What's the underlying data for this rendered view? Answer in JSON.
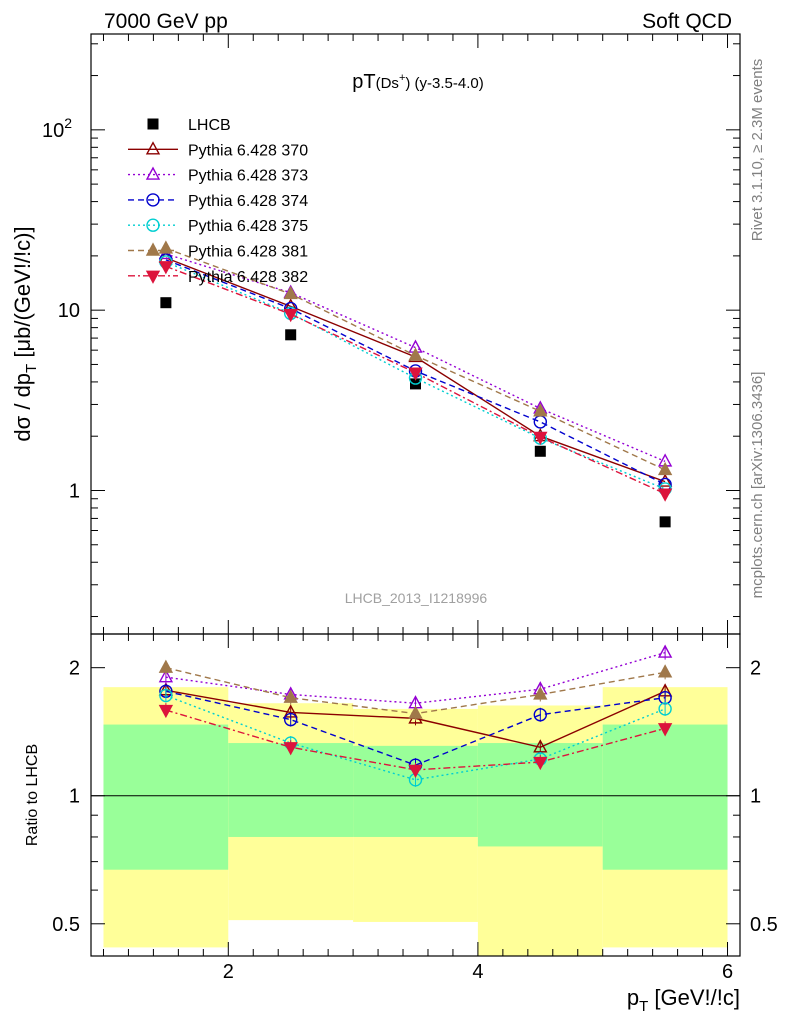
{
  "header": {
    "left": "7000 GeV pp",
    "right": "Soft QCD"
  },
  "side_labels": {
    "top": "Rivet 3.1.10, ≥ 2.3M events",
    "bottom": "mcplots.cern.ch [arXiv:1306.3436]"
  },
  "watermark": "LHCB_2013_I1218996",
  "chart_data": [
    {
      "type": "scatter",
      "panel": "main",
      "title_main": "pT",
      "title_sub": "(Ds",
      "title_sup": "+",
      "title_tail": ") (y-3.5-4.0)",
      "ylabel": "dσ / dp_T [μb/(GeV!/!c)]",
      "ylabel_main": "dσ / dp",
      "ylabel_sub": "T",
      "ylabel_tail": " [μb/(GeV!/!c)]",
      "yscale": "log",
      "xlim": [
        0.9,
        6.1
      ],
      "ylim": [
        0.16,
        340
      ],
      "yticks": [
        {
          "value": 1,
          "label": "1"
        },
        {
          "value": 10,
          "label": "10"
        },
        {
          "value": 100,
          "label": "10",
          "sup": "2"
        }
      ],
      "x": [
        1.5,
        2.5,
        3.5,
        4.5,
        5.5
      ],
      "series": [
        {
          "name": "LHCB",
          "color": "#000000",
          "marker": "square",
          "filled": true,
          "dash": "none",
          "values": [
            11.0,
            7.3,
            3.9,
            1.65,
            0.67
          ]
        },
        {
          "name": "Pythia 6.428 370",
          "color": "#8b0000",
          "marker": "triangle-up",
          "filled": false,
          "dash": "solid",
          "values": [
            19.5,
            10.5,
            5.5,
            2.0,
            1.12
          ]
        },
        {
          "name": "Pythia 6.428 373",
          "color": "#9400d3",
          "marker": "triangle-up",
          "filled": false,
          "dash": "dot",
          "values": [
            20.5,
            12.5,
            6.2,
            2.85,
            1.45
          ]
        },
        {
          "name": "Pythia 6.428 374",
          "color": "#0000cd",
          "marker": "circle",
          "filled": false,
          "dash": "dash",
          "values": [
            19.0,
            10.2,
            4.6,
            2.4,
            1.08
          ]
        },
        {
          "name": "Pythia 6.428 375",
          "color": "#00ced1",
          "marker": "circle",
          "filled": false,
          "dash": "dot",
          "values": [
            18.5,
            9.6,
            4.2,
            1.95,
            1.02
          ]
        },
        {
          "name": "Pythia 6.428 381",
          "color": "#a0784a",
          "marker": "triangle-up",
          "filled": true,
          "dash": "dash",
          "values": [
            22.0,
            12.3,
            5.6,
            2.75,
            1.3
          ]
        },
        {
          "name": "Pythia 6.428 382",
          "color": "#dc143c",
          "marker": "triangle-down",
          "filled": true,
          "dash": "dashdot",
          "values": [
            17.5,
            9.5,
            4.5,
            1.98,
            0.96
          ]
        }
      ]
    },
    {
      "type": "line",
      "panel": "ratio",
      "ylabel": "Ratio to LHCB",
      "xlabel": "p_T [GeV!/!c]",
      "xlabel_main": "p",
      "xlabel_sub": "T",
      "xlabel_tail": " [GeV!/!c]",
      "yscale": "log",
      "xlim": [
        0.9,
        6.1
      ],
      "ylim": [
        0.42,
        2.4
      ],
      "xticks": [
        {
          "value": 2,
          "label": "2"
        },
        {
          "value": 4,
          "label": "4"
        },
        {
          "value": 6,
          "label": "6"
        }
      ],
      "yticks": [
        {
          "value": 0.5,
          "label": "0.5"
        },
        {
          "value": 1,
          "label": "1"
        },
        {
          "value": 2,
          "label": "2"
        }
      ],
      "bands": [
        {
          "x0": 1,
          "x1": 2,
          "green": [
            0.67,
            1.47
          ],
          "yellow": [
            0.44,
            1.8
          ]
        },
        {
          "x0": 2,
          "x1": 3,
          "green": [
            0.8,
            1.33
          ],
          "yellow": [
            0.51,
            1.65
          ]
        },
        {
          "x0": 3,
          "x1": 4,
          "green": [
            0.8,
            1.31
          ],
          "yellow": [
            0.505,
            1.6
          ]
        },
        {
          "x0": 4,
          "x1": 5,
          "green": [
            0.76,
            1.33
          ],
          "yellow": [
            0.4,
            1.63
          ]
        },
        {
          "x0": 5,
          "x1": 6,
          "green": [
            0.67,
            1.47
          ],
          "yellow": [
            0.44,
            1.8
          ]
        }
      ],
      "x": [
        1.5,
        2.5,
        3.5,
        4.5,
        5.5
      ],
      "series": [
        {
          "name": "Pythia 6.428 370",
          "color": "#8b0000",
          "marker": "triangle-up",
          "filled": false,
          "dash": "solid",
          "values": [
            1.77,
            1.57,
            1.52,
            1.3,
            1.76
          ]
        },
        {
          "name": "Pythia 6.428 373",
          "color": "#9400d3",
          "marker": "triangle-up",
          "filled": false,
          "dash": "dot",
          "values": [
            1.9,
            1.73,
            1.65,
            1.78,
            2.17
          ]
        },
        {
          "name": "Pythia 6.428 374",
          "color": "#0000cd",
          "marker": "circle",
          "filled": false,
          "dash": "dash",
          "values": [
            1.76,
            1.51,
            1.18,
            1.55,
            1.7
          ]
        },
        {
          "name": "Pythia 6.428 375",
          "color": "#00ced1",
          "marker": "circle",
          "filled": false,
          "dash": "dot",
          "values": [
            1.72,
            1.33,
            1.09,
            1.22,
            1.6
          ]
        },
        {
          "name": "Pythia 6.428 381",
          "color": "#a0784a",
          "marker": "triangle-up",
          "filled": true,
          "dash": "dash",
          "values": [
            2.0,
            1.7,
            1.56,
            1.73,
            1.95
          ]
        },
        {
          "name": "Pythia 6.428 382",
          "color": "#dc143c",
          "marker": "triangle-down",
          "filled": true,
          "dash": "dashdot",
          "values": [
            1.59,
            1.3,
            1.15,
            1.2,
            1.44
          ]
        }
      ]
    }
  ]
}
